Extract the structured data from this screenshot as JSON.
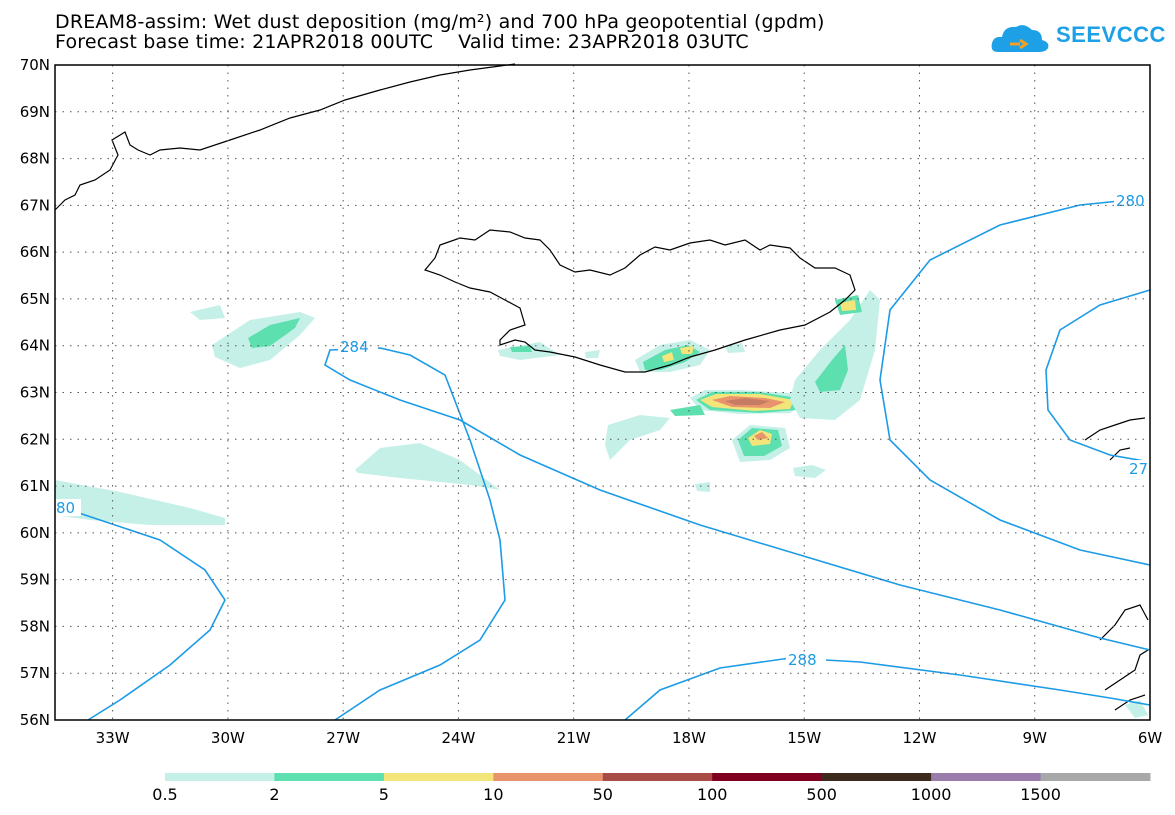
{
  "title_line1": "DREAM8-assim: Wet dust deposition (mg/m²) and 700 hPa geopotential (gpdm)",
  "title_line2": "Forecast base time: 21APR2018 00UTC    Valid time: 23APR2018 03UTC",
  "logo_text": "SEEVCCC",
  "latitude_labels": [
    "70N",
    "69N",
    "68N",
    "67N",
    "66N",
    "65N",
    "64N",
    "63N",
    "62N",
    "61N",
    "60N",
    "59N",
    "58N",
    "57N",
    "56N"
  ],
  "longitude_labels": [
    "33W",
    "30W",
    "27W",
    "24W",
    "21W",
    "18W",
    "15W",
    "12W",
    "9W",
    "6W"
  ],
  "contour_labels": {
    "c284": "284",
    "c288": "288",
    "c280_ne": "280",
    "c280_w": "80",
    "c27_e": "27"
  },
  "legend": {
    "thresholds": [
      "0.5",
      "2",
      "5",
      "10",
      "50",
      "100",
      "500",
      "1000",
      "1500"
    ],
    "colors": [
      "#c4f0e8",
      "#5ddfaf",
      "#f3e57a",
      "#e8946c",
      "#a94c45",
      "#800022",
      "#3d2a1c",
      "#9a7bab",
      "#a8a8a8"
    ]
  },
  "colors": {
    "contour": "#1c9be6",
    "land": "#000000",
    "grid": "#555555"
  }
}
